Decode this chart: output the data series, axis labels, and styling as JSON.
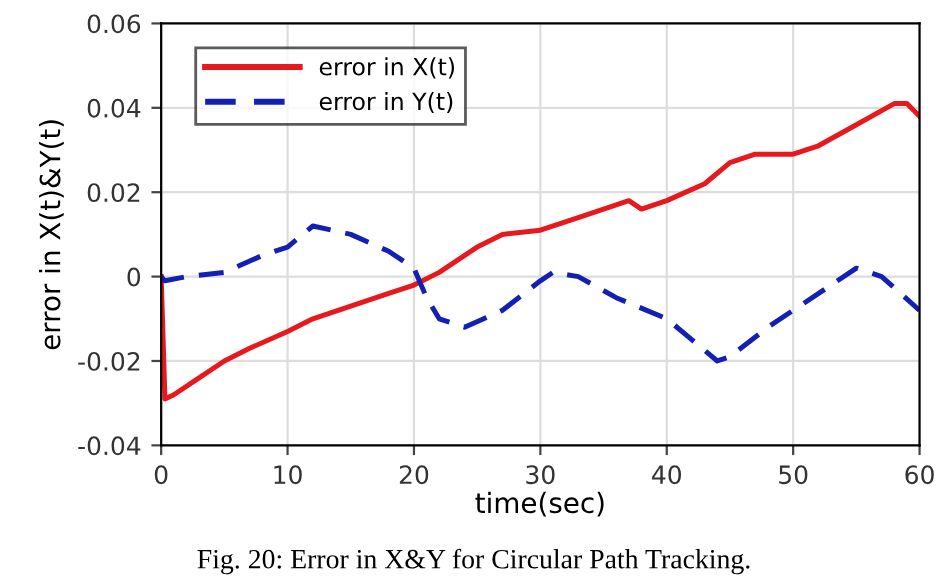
{
  "chart_data": {
    "type": "line",
    "xlabel": "time(sec)",
    "ylabel": "error in X(t)&Y(t)",
    "xlim": [
      0,
      60
    ],
    "ylim": [
      -0.04,
      0.06
    ],
    "xticks": [
      0,
      10,
      20,
      30,
      40,
      50,
      60
    ],
    "yticks": [
      -0.04,
      -0.02,
      0,
      0.02,
      0.04,
      0.06
    ],
    "grid": true,
    "legend": "top left",
    "annotations": [
      "Fig. 20: Error in X&Y for Circular Path Tracking."
    ],
    "series": [
      {
        "name": "error in X(t)",
        "color": "#e8191e",
        "line_style": "solid",
        "x": [
          0,
          0.3,
          1,
          3,
          5,
          7,
          10,
          12,
          15,
          18,
          20,
          22,
          25,
          27,
          30,
          33,
          35,
          37,
          38,
          40,
          43,
          45,
          47,
          50,
          52,
          55,
          58,
          59,
          60
        ],
        "values": [
          0,
          -0.029,
          -0.028,
          -0.024,
          -0.02,
          -0.017,
          -0.013,
          -0.01,
          -0.007,
          -0.004,
          -0.002,
          0.001,
          0.007,
          0.01,
          0.011,
          0.014,
          0.016,
          0.018,
          0.016,
          0.018,
          0.022,
          0.027,
          0.029,
          0.029,
          0.031,
          0.036,
          0.041,
          0.041,
          0.038
        ]
      },
      {
        "name": "error in Y(t)",
        "color": "#1420b4",
        "line_style": "dashed",
        "x": [
          0,
          0.3,
          2,
          5,
          8,
          10,
          12,
          15,
          18,
          20,
          21,
          22,
          24,
          27,
          30,
          31,
          33,
          36,
          40,
          42,
          44,
          45,
          48,
          50,
          53,
          55,
          57,
          60
        ],
        "values": [
          0,
          -0.001,
          0,
          0.001,
          0.005,
          0.007,
          0.012,
          0.01,
          0.006,
          0.002,
          -0.005,
          -0.01,
          -0.012,
          -0.008,
          -0.001,
          0.001,
          0,
          -0.005,
          -0.01,
          -0.015,
          -0.02,
          -0.019,
          -0.012,
          -0.008,
          -0.002,
          0.002,
          0.0,
          -0.008
        ]
      }
    ]
  }
}
